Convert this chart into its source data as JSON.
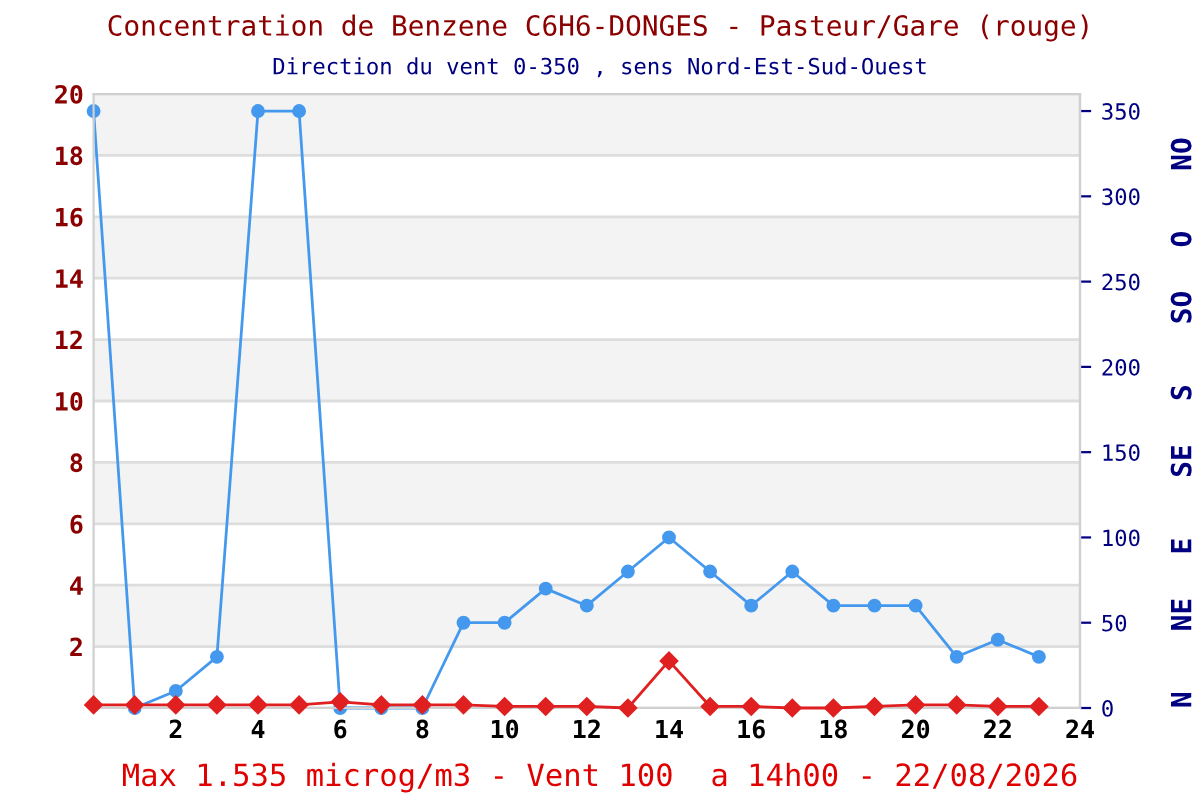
{
  "chart_data": {
    "type": "line",
    "title": "Concentration de Benzene C6H6-DONGES - Pasteur/Gare (rouge)",
    "subtitle": "Direction du vent 0-350 , sens Nord-Est-Sud-Ouest",
    "annotations": [
      "Max 1.535 microg/m3 - Vent 100  a 14h00 - 22/08/2026",
      "N",
      "NE",
      "E",
      "SE",
      "S",
      "SO",
      "O",
      "NO"
    ],
    "x": [
      0,
      1,
      2,
      3,
      4,
      5,
      6,
      7,
      8,
      9,
      10,
      11,
      12,
      13,
      14,
      15,
      16,
      17,
      18,
      19,
      20,
      21,
      22,
      23
    ],
    "series": [
      {
        "color": "#e02020",
        "marker": "diamond",
        "values": [
          0.1,
          0.1,
          0.1,
          0.1,
          0.1,
          0.1,
          0.2,
          0.1,
          0.1,
          0.1,
          0.05,
          0.05,
          0.05,
          0.0,
          1.535,
          0.05,
          0.05,
          0.0,
          0.0,
          0.05,
          0.1,
          0.1,
          0.05,
          0.05
        ]
      },
      {
        "color": "#4499ee",
        "marker": "circle",
        "axis": "y2",
        "values": [
          350,
          0,
          10,
          30,
          350,
          350,
          0,
          0,
          0,
          50,
          50,
          70,
          60,
          80,
          100,
          80,
          60,
          80,
          60,
          60,
          60,
          30,
          40,
          30
        ]
      }
    ],
    "xlim": [
      0,
      24
    ],
    "xticks": [
      {
        "value": 0,
        "label": null
      },
      2,
      4,
      6,
      8,
      10,
      12,
      14,
      16,
      18,
      20,
      22,
      24
    ],
    "ylim": [
      0,
      20
    ],
    "yticks": [
      {
        "value": 0,
        "label": null
      },
      2,
      4,
      6,
      8,
      10,
      12,
      14,
      16,
      18,
      20
    ],
    "y2lim": [
      0,
      360
    ],
    "y2ticks": [
      0,
      50,
      100,
      150,
      200,
      250,
      300,
      350
    ],
    "bands": [
      {
        "axis": "y",
        "from": 2,
        "to": 4,
        "color": "#f3f3f3"
      },
      {
        "axis": "y",
        "from": 6,
        "to": 8,
        "color": "#f3f3f3"
      },
      {
        "axis": "y",
        "from": 10,
        "to": 12,
        "color": "#f3f3f3"
      },
      {
        "axis": "y",
        "from": 14,
        "to": 16,
        "color": "#f3f3f3"
      },
      {
        "axis": "y",
        "from": 18,
        "to": 20,
        "color": "#f3f3f3"
      }
    ],
    "grid": "y",
    "legend": false
  }
}
